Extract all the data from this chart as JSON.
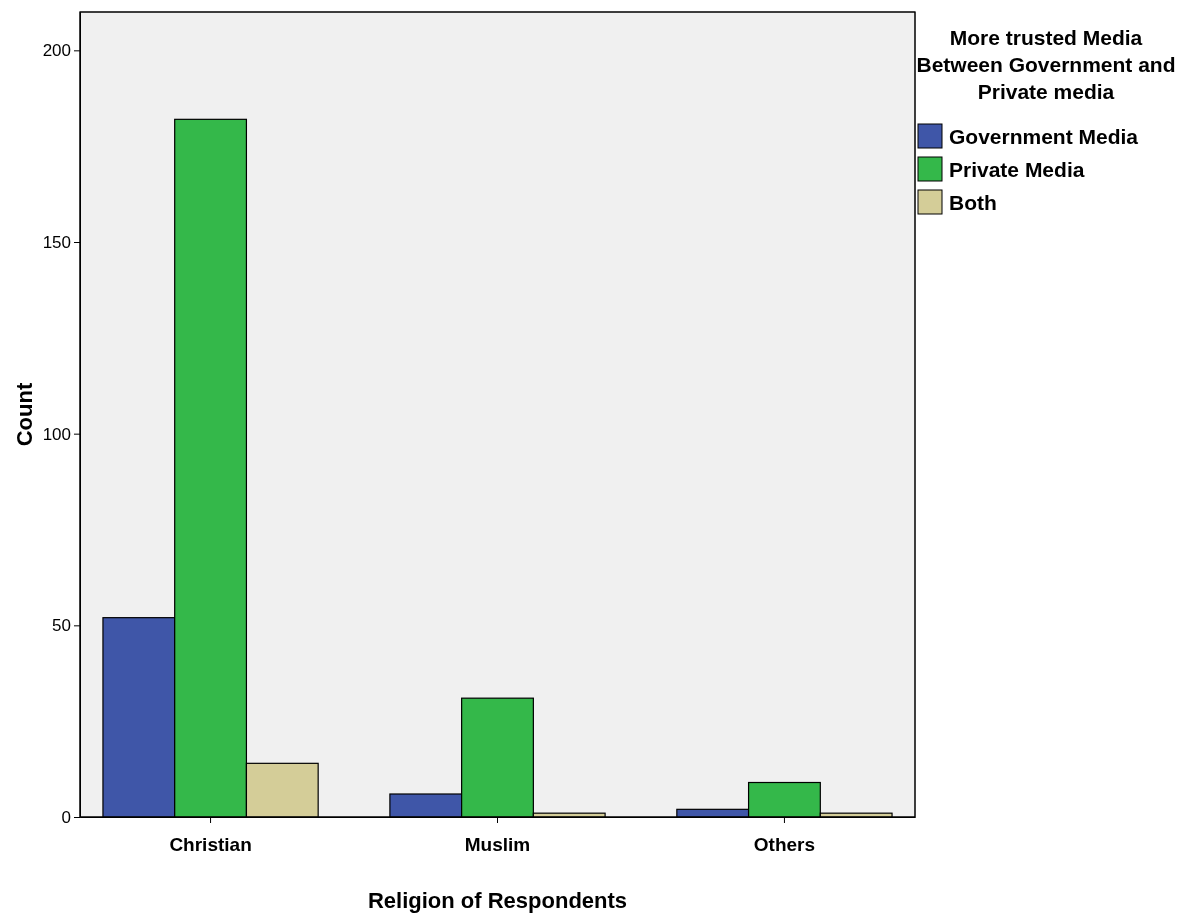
{
  "chart_data": {
    "type": "bar",
    "xlabel": "Religion of Respondents",
    "ylabel": "Count",
    "legend_title": "More trusted Media Between Government and Private media",
    "categories": [
      "Christian",
      "Muslim",
      "Others"
    ],
    "series": [
      {
        "name": "Government Media",
        "color": "#3f56a8",
        "values": [
          52,
          6,
          2
        ]
      },
      {
        "name": "Private Media",
        "color": "#34b84a",
        "values": [
          182,
          31,
          9
        ]
      },
      {
        "name": "Both",
        "color": "#d4cd98",
        "values": [
          14,
          1,
          1
        ]
      }
    ],
    "ylim": [
      0,
      210
    ],
    "yticks": [
      0,
      50,
      100,
      150,
      200
    ],
    "grid": false,
    "legend": "top right"
  }
}
